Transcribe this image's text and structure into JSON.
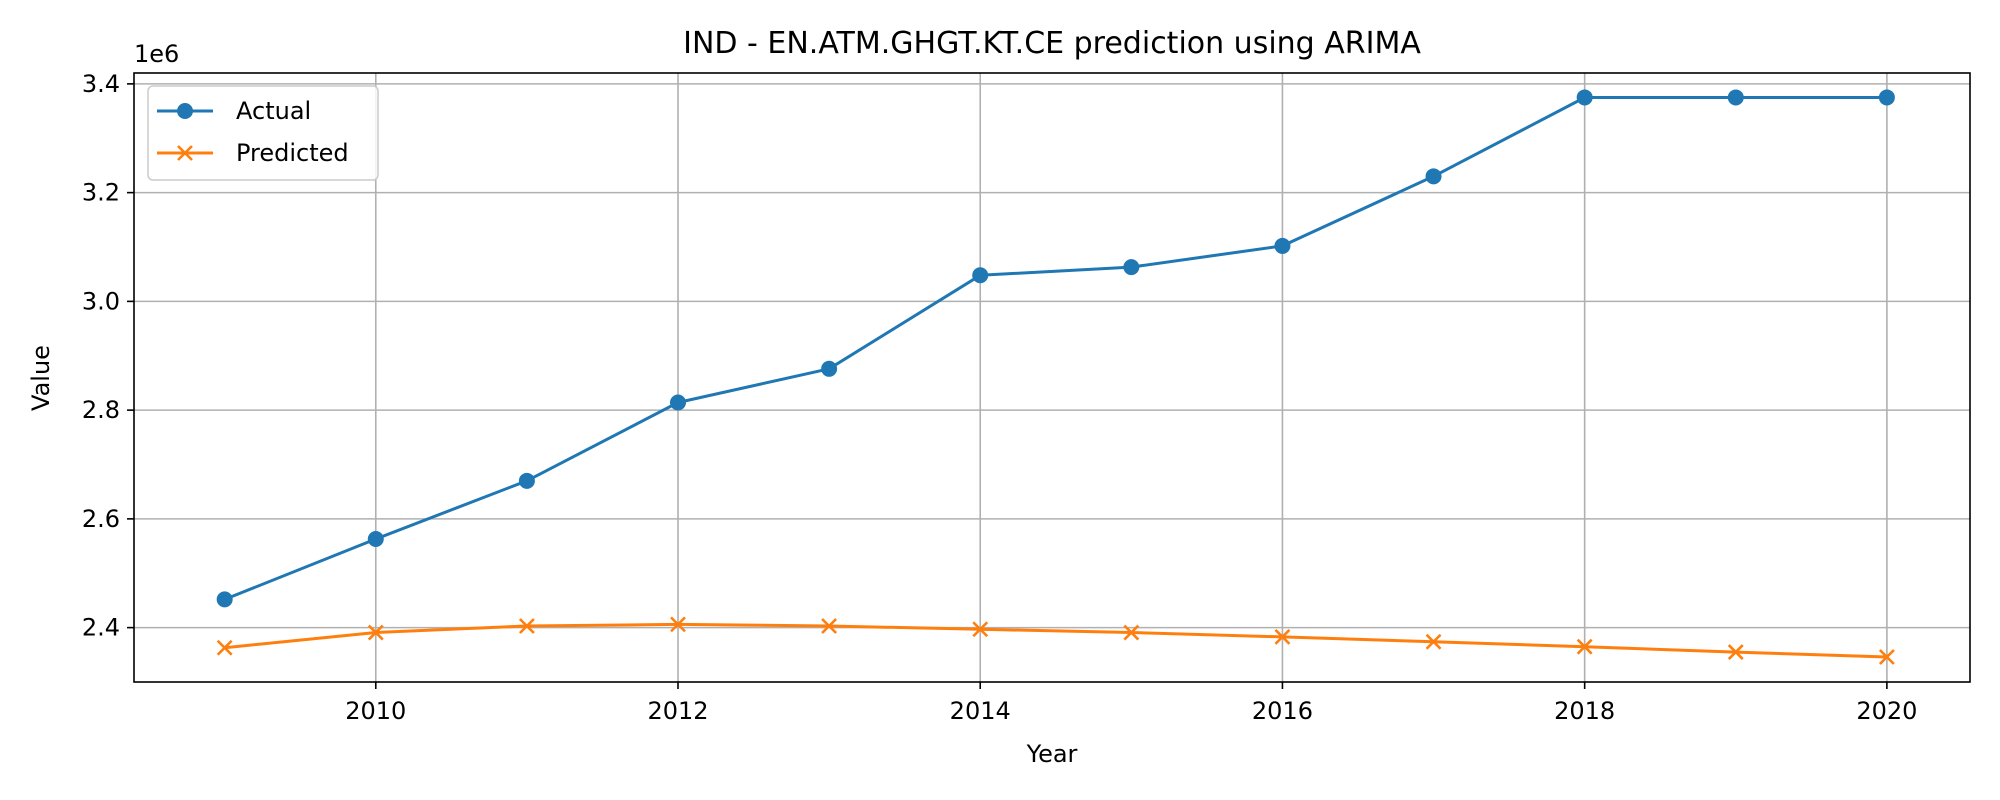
{
  "chart_data": {
    "type": "line",
    "title": "IND - EN.ATM.GHGT.KT.CE prediction using ARIMA",
    "xlabel": "Year",
    "ylabel": "Value",
    "y_offset_label": "1e6",
    "y_scale": 1000000,
    "x": [
      2009,
      2010,
      2011,
      2012,
      2013,
      2014,
      2015,
      2016,
      2017,
      2018,
      2019,
      2020
    ],
    "series": [
      {
        "name": "Actual",
        "color": "#1f77b4",
        "marker": "circle",
        "values": [
          2452000,
          2563000,
          2670000,
          2814000,
          2876000,
          3048000,
          3063000,
          3102000,
          3230000,
          3375000,
          3375000,
          3375000
        ]
      },
      {
        "name": "Predicted",
        "color": "#ff7f0e",
        "marker": "x",
        "values": [
          2363000,
          2391000,
          2403000,
          2406000,
          2403000,
          2397000,
          2391000,
          2383000,
          2374000,
          2365000,
          2355000,
          2346000
        ]
      }
    ],
    "xlim": [
      2008.4,
      2020.55
    ],
    "ylim": [
      2300000,
      3420000
    ],
    "xticks": [
      "2010",
      "2012",
      "2014",
      "2016",
      "2018",
      "2020"
    ],
    "yticks": [
      "2.4",
      "2.6",
      "2.8",
      "3.0",
      "3.2",
      "3.4"
    ],
    "grid": true,
    "legend_position": "upper-left"
  }
}
